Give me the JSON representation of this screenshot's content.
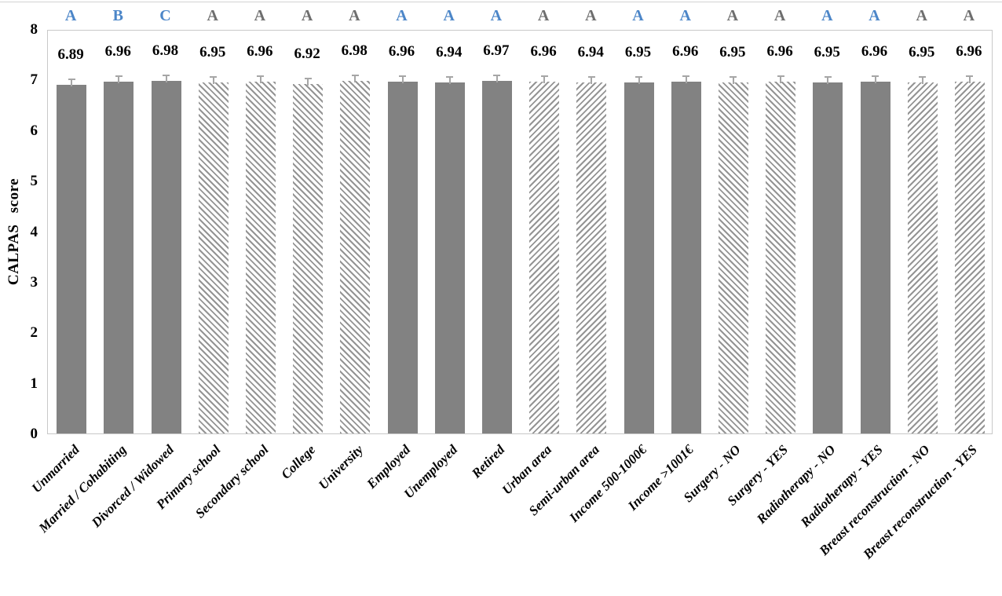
{
  "chart_data": {
    "type": "bar",
    "title": "",
    "xlabel": "",
    "ylabel": "CALPAS score",
    "ylim": [
      0,
      8
    ],
    "yticks": [
      0,
      1,
      2,
      3,
      4,
      5,
      6,
      7,
      8
    ],
    "grid": false,
    "legend": false,
    "categories": [
      "Unmarried",
      "Married / Cohabiting",
      "Divorced / Widowed",
      "Primary school",
      "Secondary school",
      "College",
      "University",
      "Employed",
      "Unemployed",
      "Retired",
      "Urban area",
      "Semi-urban area",
      "Income 500-1000€",
      "Income >1001€",
      "Surgery - NO",
      "Surgery - YES",
      "Radiotherapy - NO",
      "Radiotherapy - YES",
      "Breast reconstruction - NO",
      "Breast reconstruction - YES"
    ],
    "values": [
      6.89,
      6.96,
      6.98,
      6.95,
      6.96,
      6.92,
      6.98,
      6.96,
      6.94,
      6.97,
      6.96,
      6.94,
      6.95,
      6.96,
      6.95,
      6.96,
      6.95,
      6.96,
      6.95,
      6.96
    ],
    "value_labels": [
      "6.89",
      "6.96",
      "6.98",
      "6.95",
      "6.96",
      "6.92",
      "6.98",
      "6.96",
      "6.94",
      "6.97",
      "6.96",
      "6.94",
      "6.95",
      "6.96",
      "6.95",
      "6.96",
      "6.95",
      "6.96",
      "6.95",
      "6.96"
    ],
    "significance_letters": [
      "A",
      "B",
      "C",
      "A",
      "A",
      "A",
      "A",
      "A",
      "A",
      "A",
      "A",
      "A",
      "A",
      "A",
      "A",
      "A",
      "A",
      "A",
      "A",
      "A"
    ],
    "letter_colors": [
      "blue",
      "blue",
      "blue",
      "gray",
      "gray",
      "gray",
      "gray",
      "blue",
      "blue",
      "blue",
      "gray",
      "gray",
      "blue",
      "blue",
      "gray",
      "gray",
      "blue",
      "blue",
      "gray",
      "gray"
    ],
    "bar_fills": [
      "solid",
      "solid",
      "solid",
      "hatch-back",
      "hatch-back",
      "hatch-back",
      "hatch-back",
      "solid",
      "solid",
      "solid",
      "hatch-fwd",
      "hatch-fwd",
      "solid",
      "solid",
      "hatch-back",
      "hatch-back",
      "solid",
      "solid",
      "hatch-fwd",
      "hatch-fwd"
    ],
    "error_bar": 0.14,
    "colors": {
      "bar_solid": "#828282",
      "hatch_line": "#949494",
      "letter_blue": "#4c86c8",
      "letter_gray": "#6e6e6e",
      "error_bar": "#a6a6a6",
      "axis_border": "#c8c8c8",
      "text": "#000000"
    }
  }
}
